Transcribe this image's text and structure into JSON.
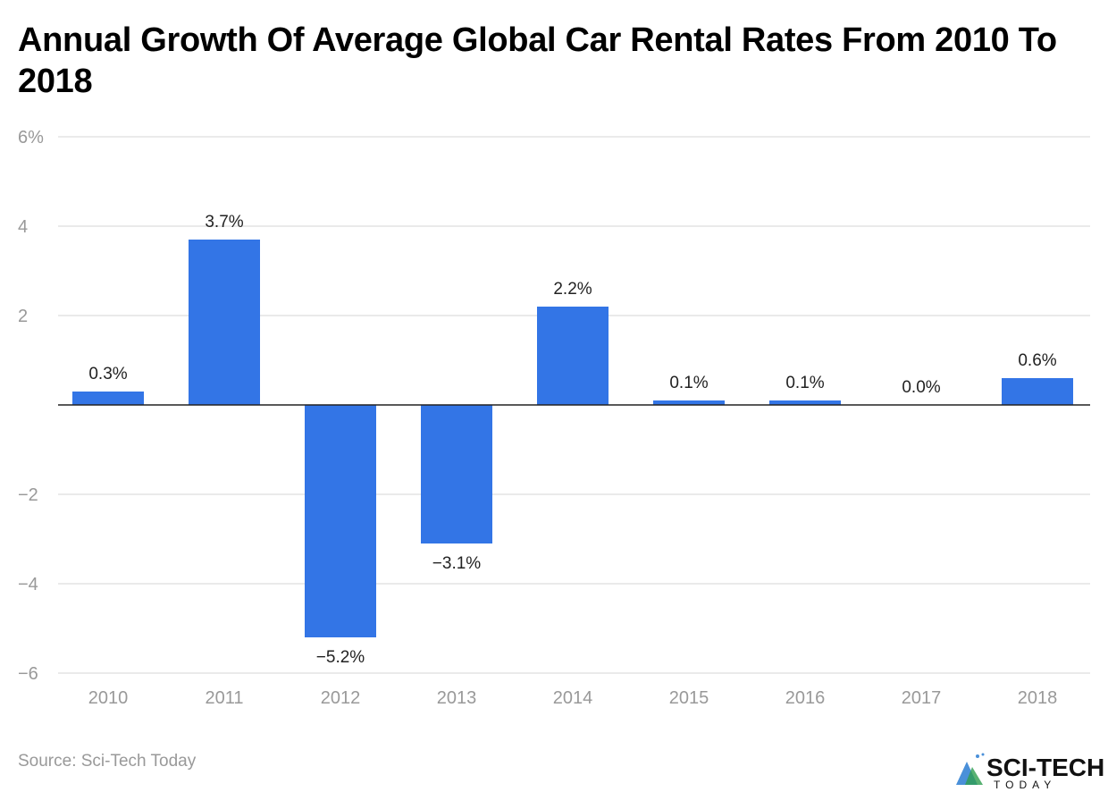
{
  "chart_data": {
    "type": "bar",
    "title": "Annual Growth Of Average Global Car Rental Rates From 2010 To 2018",
    "categories": [
      "2010",
      "2011",
      "2012",
      "2013",
      "2014",
      "2015",
      "2016",
      "2017",
      "2018"
    ],
    "values": [
      0.3,
      3.7,
      -5.2,
      -3.1,
      2.2,
      0.1,
      0.1,
      0.0,
      0.6
    ],
    "data_labels": [
      "0.3%",
      "3.7%",
      "−5.2%",
      "−3.1%",
      "2.2%",
      "0.1%",
      "0.1%",
      "0.0%",
      "0.6%"
    ],
    "ylim": [
      -6,
      6
    ],
    "yticks": [
      6,
      4,
      2,
      0,
      -2,
      -4,
      -6
    ],
    "ytick_labels": [
      "6%",
      "4",
      "2",
      "",
      "−2",
      "−4",
      "−6"
    ],
    "xlabel": "",
    "ylabel": "",
    "grid": true,
    "bar_color": "#3375e6"
  },
  "source": "Source: Sci-Tech Today",
  "logo": {
    "text": "SCI-TECH",
    "subtext": "TODAY"
  }
}
